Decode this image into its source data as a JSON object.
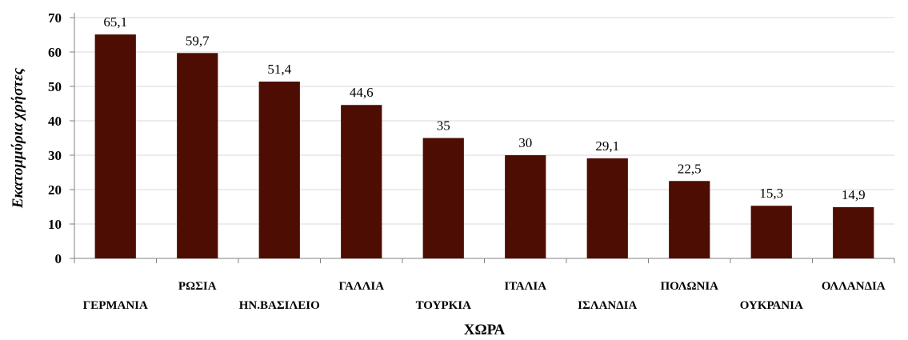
{
  "chart_data": {
    "type": "bar",
    "categories": [
      "ΓΕΡΜΑΝΙΑ",
      "ΡΩΣΙΑ",
      "ΗΝ.ΒΑΣΙΛΕΙΟ",
      "ΓΑΛΛΙΑ",
      "ΤΟΥΡΚΙΑ",
      "ΙΤΑΛΙΑ",
      "ΙΣΛΑΝΔΙΑ",
      "ΠΟΛΩΝΙΑ",
      "ΟΥΚΡΑΝΙΑ",
      "ΟΛΛΑΝΔΙΑ"
    ],
    "values": [
      65.1,
      59.7,
      51.4,
      44.6,
      35,
      30,
      29.1,
      22.5,
      15.3,
      14.9
    ],
    "data_labels": [
      "65,1",
      "59,7",
      "51,4",
      "44,6",
      "35",
      "30",
      "29,1",
      "22,5",
      "15,3",
      "14,9"
    ],
    "title": "",
    "xlabel": "ΧΩΡΑ",
    "ylabel": "Εκατομμύρια χρήστες",
    "ylim": [
      0,
      70
    ],
    "yticks": [
      0,
      10,
      20,
      30,
      40,
      50,
      60,
      70
    ],
    "grid": true,
    "bar_color": "#4d0d03",
    "grid_color": "#d9d9d9"
  }
}
